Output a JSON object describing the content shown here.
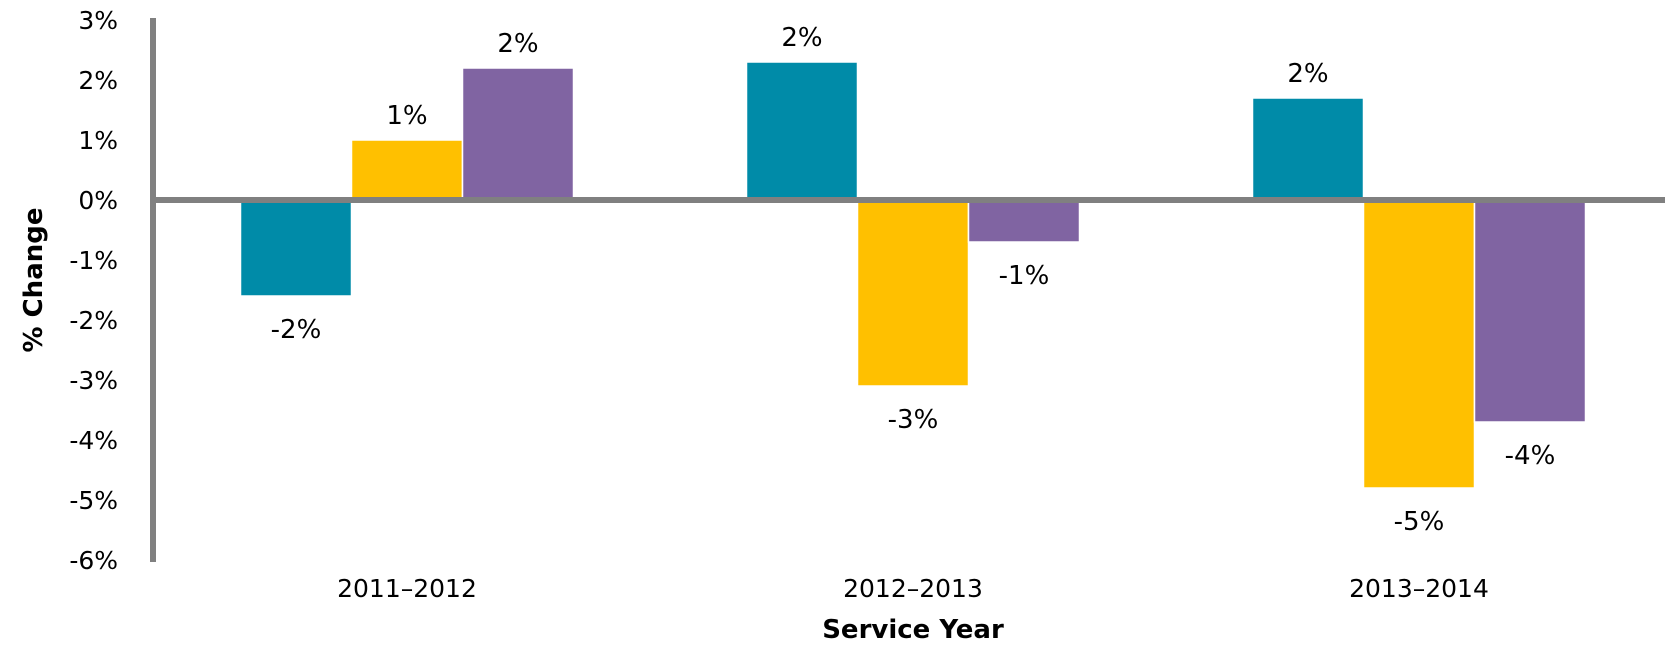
{
  "chart_data": {
    "type": "bar",
    "title": "",
    "xlabel": "Service Year",
    "ylabel": "% Change",
    "categories": [
      "2011–2012",
      "2012–2013",
      "2013–2014"
    ],
    "series": [
      {
        "color": "#008BA8",
        "values": [
          -1.6,
          2.3,
          1.7
        ],
        "labels": [
          "-2%",
          "2%",
          "2%"
        ]
      },
      {
        "color": "#FFC000",
        "values": [
          1.0,
          -3.1,
          -4.8
        ],
        "labels": [
          "1%",
          "-3%",
          "-5%"
        ]
      },
      {
        "color": "#8064A2",
        "values": [
          2.2,
          -0.7,
          -3.7
        ],
        "labels": [
          "2%",
          "-1%",
          "-4%"
        ]
      }
    ],
    "ylim": [
      -6,
      3
    ],
    "yticks": [
      3,
      2,
      1,
      0,
      -1,
      -2,
      -3,
      -4,
      -5,
      -6
    ],
    "ytick_labels": [
      "3%",
      "2%",
      "1%",
      "0%",
      "-1%",
      "-2%",
      "-3%",
      "-4%",
      "-5%",
      "-6%"
    ],
    "grid": false,
    "legend": "none",
    "axis_color": "#808080"
  }
}
